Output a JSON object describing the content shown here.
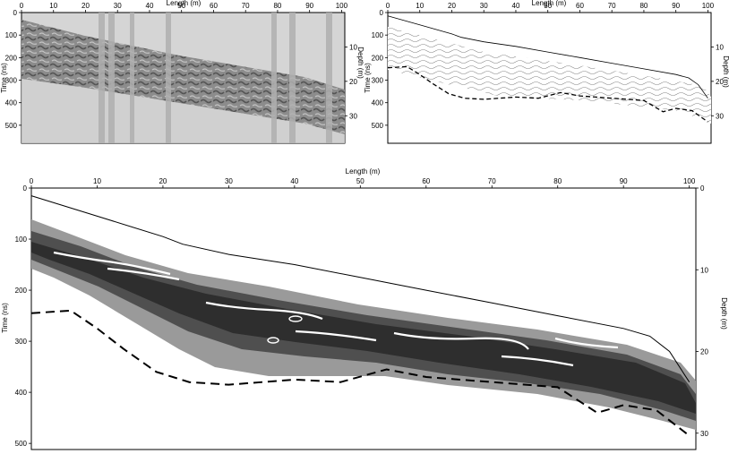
{
  "panels": [
    {
      "id": "top-left",
      "x_title": "Length (m)",
      "y_left_title": "Time (ns)",
      "y_right_title": "Depth (m)",
      "x_ticks": [
        0,
        10,
        20,
        30,
        40,
        50,
        60,
        70,
        80,
        90,
        100
      ],
      "y_left_ticks": [
        0,
        100,
        200,
        300,
        400,
        500
      ],
      "y_right_ticks": [
        10,
        20,
        30
      ]
    },
    {
      "id": "top-right",
      "x_title": "Length (m)",
      "y_left_title": "Time (ns)",
      "y_right_title": "Depth (m)",
      "x_ticks": [
        0,
        10,
        20,
        30,
        40,
        50,
        60,
        70,
        80,
        90,
        100
      ],
      "y_left_ticks": [
        0,
        100,
        200,
        300,
        400,
        500
      ],
      "y_right_ticks": [
        10,
        20,
        30
      ]
    },
    {
      "id": "bottom",
      "x_title": "Length (m)",
      "y_left_title": "Time (ns)",
      "y_right_title": "Depth (m)",
      "x_ticks": [
        0,
        10,
        20,
        30,
        40,
        50,
        60,
        70,
        80,
        90,
        100
      ],
      "y_left_ticks": [
        0,
        100,
        200,
        300,
        400,
        500
      ],
      "y_right_ticks": [
        0,
        10,
        20,
        30
      ]
    }
  ],
  "chart_data": {
    "type": "line",
    "x_units": "Length (m)",
    "y_units": "Time (ns)",
    "xlim": [
      0,
      100
    ],
    "ylim": [
      0,
      500
    ],
    "series": [
      {
        "x": [
          0,
          10,
          20,
          23,
          30,
          40,
          50,
          60,
          70,
          80,
          90,
          94,
          97,
          100
        ],
        "y": [
          15,
          55,
          95,
          110,
          130,
          150,
          175,
          200,
          225,
          250,
          275,
          290,
          320,
          380
        ]
      },
      {
        "x": [
          0,
          6,
          10,
          14,
          19,
          24,
          30,
          40,
          47,
          54,
          60,
          70,
          80,
          86,
          90,
          95,
          100
        ],
        "y": [
          245,
          240,
          275,
          315,
          360,
          380,
          385,
          375,
          380,
          355,
          370,
          380,
          390,
          440,
          425,
          435,
          485
        ]
      }
    ]
  }
}
